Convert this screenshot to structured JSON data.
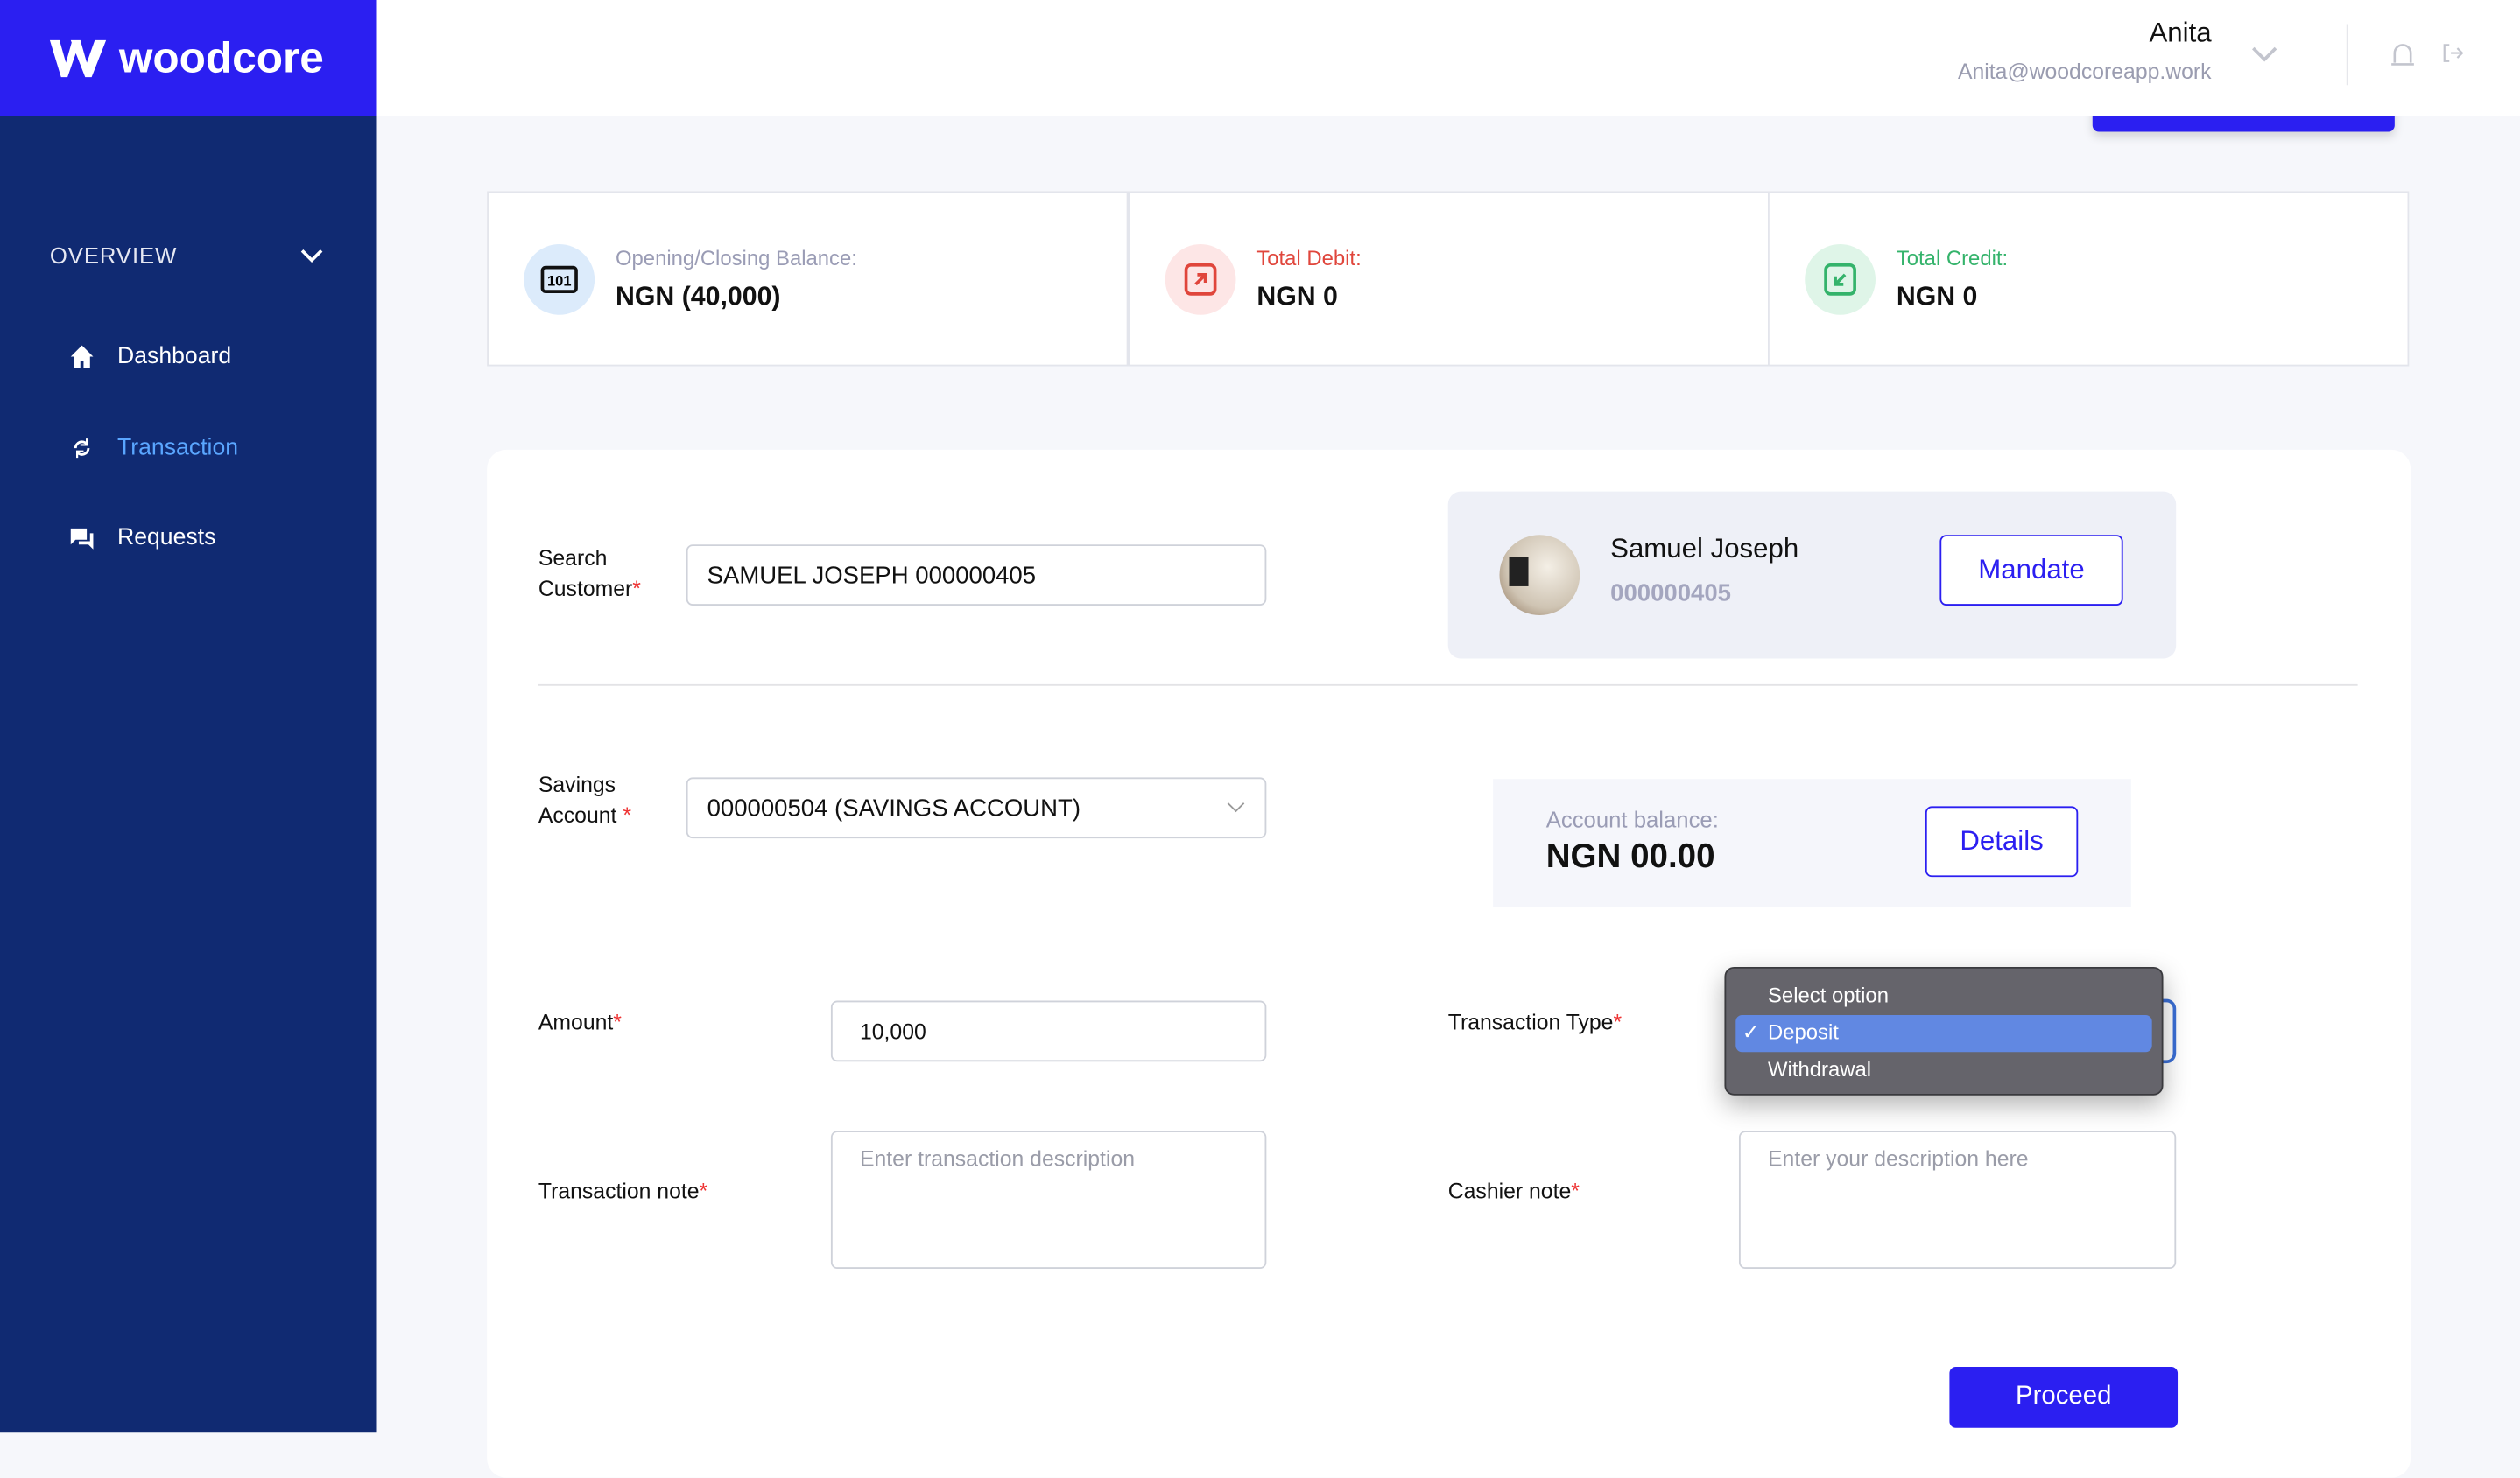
{
  "brand": {
    "name": "woodcore",
    "color": "#2b1ff1",
    "sidebar_color": "#102a72"
  },
  "sidebar": {
    "section": "OVERVIEW",
    "items": [
      {
        "label": "Dashboard",
        "icon": "home-icon"
      },
      {
        "label": "Transaction",
        "icon": "refresh-icon",
        "active": true
      },
      {
        "label": "Requests",
        "icon": "chat-icon"
      }
    ]
  },
  "header": {
    "user_name": "Anita",
    "user_email": "Anita@woodcoreapp.work"
  },
  "summary": [
    {
      "label": "Opening/Closing Balance:",
      "value": "NGN (40,000)",
      "color": "#9a9cb5"
    },
    {
      "label": "Total Debit:",
      "value": "NGN 0",
      "color": "#e0463c"
    },
    {
      "label": "Total Credit:",
      "value": "NGN 0",
      "color": "#34b36b"
    }
  ],
  "form": {
    "search_label_1": "Search",
    "search_label_2": "Customer",
    "search_value": "SAMUEL JOSEPH 000000405",
    "customer": {
      "name": "Samuel Joseph",
      "id": "000000405",
      "mandate": "Mandate"
    },
    "savings_label_1": "Savings",
    "savings_label_2": "Account",
    "savings_value": "000000504 (SAVINGS ACCOUNT)",
    "balance_label": "Account balance:",
    "balance_value": "NGN 00.00",
    "details": "Details",
    "amount_label": "Amount",
    "amount_value": "10,000",
    "type_label": "Transaction Type",
    "type_options": [
      "Select option",
      "Deposit",
      "Withdrawal"
    ],
    "type_selected": "Deposit",
    "note_label": "Transaction note",
    "note_placeholder": "Enter transaction description",
    "cashier_label": "Cashier note",
    "cashier_placeholder": "Enter your description here",
    "proceed": "Proceed",
    "required_mark": "*"
  }
}
